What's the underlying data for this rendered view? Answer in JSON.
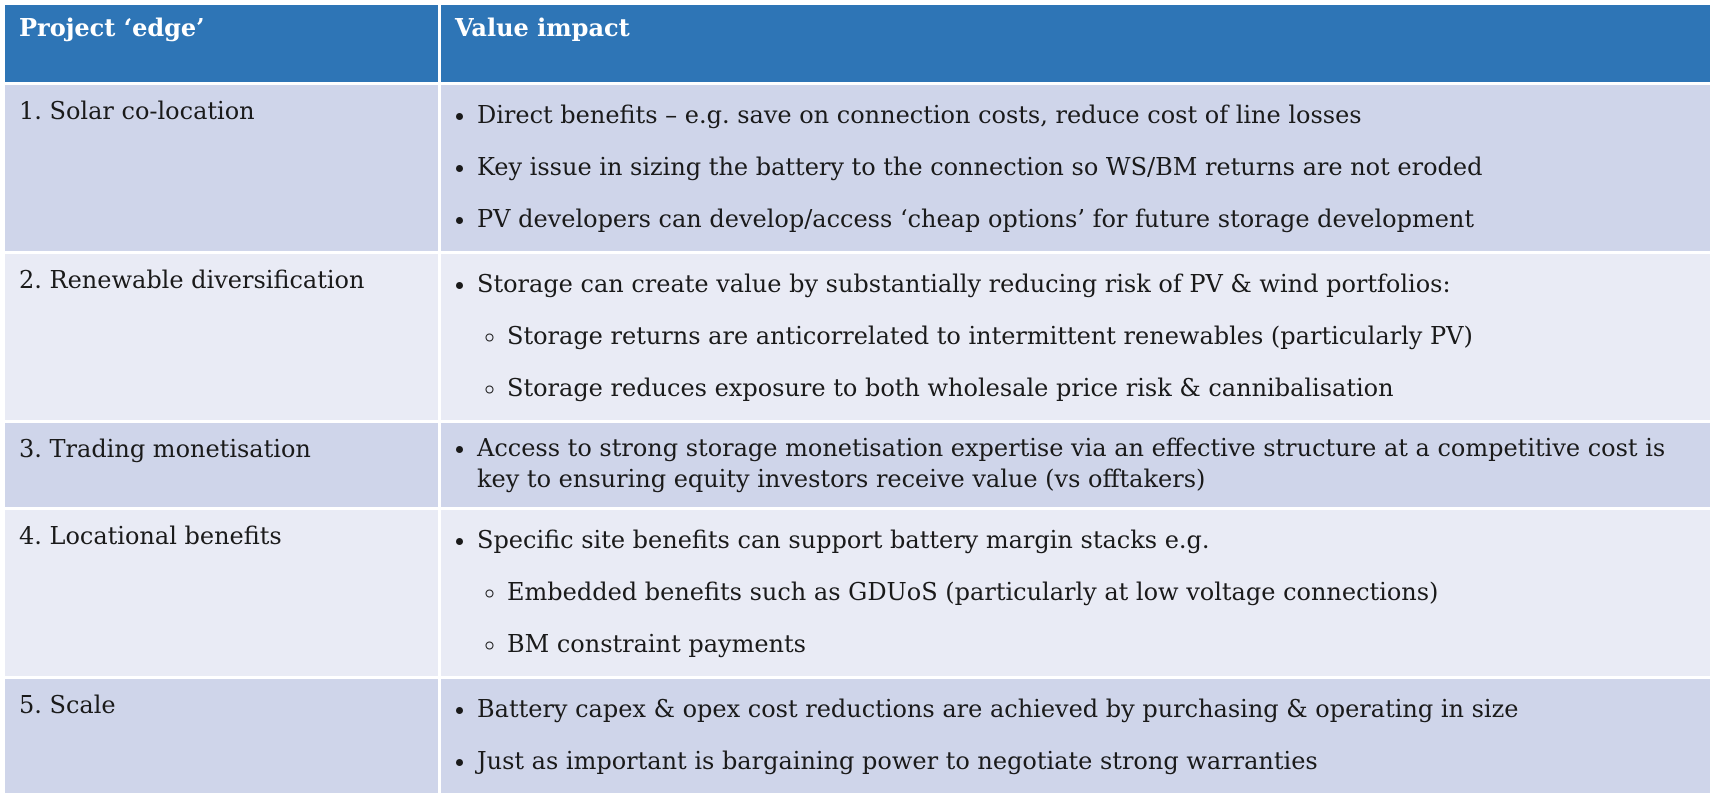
{
  "table": {
    "header": [
      "Project ‘edge’",
      "Value impact"
    ],
    "rows": [
      {
        "edge": "1. Solar co-location",
        "items": [
          {
            "text": "Direct benefits – e.g. save on connection costs, reduce cost of line losses"
          },
          {
            "text": "Key issue in sizing the battery to the connection so WS/BM returns are not eroded"
          },
          {
            "text": "PV developers can develop/access ‘cheap options’ for future storage development"
          }
        ]
      },
      {
        "edge": "2. Renewable diversification",
        "items": [
          {
            "text": "Storage can create value by substantially reducing risk of PV & wind portfolios:",
            "subitems": [
              "Storage returns are anticorrelated to intermittent renewables (particularly PV)",
              "Storage reduces exposure to both wholesale price risk & cannibalisation"
            ]
          }
        ]
      },
      {
        "edge": "3. Trading monetisation",
        "items": [
          {
            "text": "Access to strong storage monetisation expertise via an effective structure at a competitive cost is key to ensuring equity investors receive value (vs offtakers)"
          }
        ]
      },
      {
        "edge": "4. Locational benefits",
        "items": [
          {
            "text": "Specific site benefits can support battery margin stacks e.g.",
            "subitems": [
              "Embedded benefits such as GDUoS (particularly at low voltage connections)",
              "BM constraint payments"
            ]
          }
        ]
      },
      {
        "edge": "5. Scale",
        "items": [
          {
            "text": "Battery capex & opex cost reductions are achieved by purchasing & operating in size"
          },
          {
            "text": "Just as important is bargaining power to negotiate strong warranties"
          }
        ]
      }
    ]
  }
}
